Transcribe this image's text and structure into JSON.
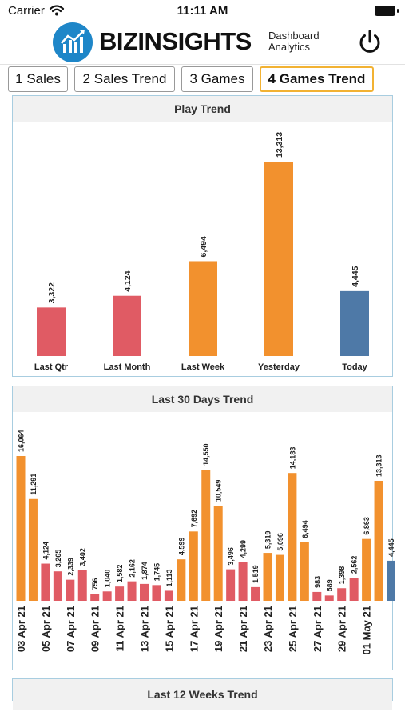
{
  "status": {
    "carrier": "Carrier",
    "time": "11:11 AM"
  },
  "header": {
    "brand": "BIZINSIGHTS",
    "subtitle_line1": "Dashboard",
    "subtitle_line2": "Analytics"
  },
  "tabs": [
    {
      "label": "1 Sales",
      "active": false
    },
    {
      "label": "2 Sales Trend",
      "active": false
    },
    {
      "label": "3 Games",
      "active": false
    },
    {
      "label": "4 Games Trend",
      "active": true
    }
  ],
  "colors": {
    "red": "#e05b64",
    "orange": "#f2912e",
    "blue": "#4e79a7",
    "brand": "#1e86c8"
  },
  "chart_data": [
    {
      "type": "bar",
      "title": "Play Trend",
      "categories": [
        "Last Qtr",
        "Last Month",
        "Last Week",
        "Yesterday",
        "Today"
      ],
      "values": [
        3322,
        4124,
        6494,
        13313,
        4445
      ],
      "value_labels": [
        "3,322",
        "4,124",
        "6,494",
        "13,313",
        "4,445"
      ],
      "colors": [
        "#e05b64",
        "#e05b64",
        "#f2912e",
        "#f2912e",
        "#4e79a7"
      ],
      "ylim": [
        0,
        13313
      ]
    },
    {
      "type": "bar",
      "title": "Last 30 Days Trend",
      "tick_labels": [
        "03 Apr 21",
        "05 Apr 21",
        "07 Apr 21",
        "09 Apr 21",
        "11 Apr 21",
        "13 Apr 21",
        "15 Apr 21",
        "17 Apr 21",
        "19 Apr 21",
        "21 Apr 21",
        "23 Apr 21",
        "25 Apr 21",
        "27 Apr 21",
        "29 Apr 21",
        "01 May 21"
      ],
      "values": [
        16064,
        11291,
        4124,
        3265,
        2339,
        3402,
        756,
        1040,
        1582,
        2162,
        1874,
        1745,
        1113,
        4599,
        7692,
        14550,
        10549,
        3496,
        4299,
        1519,
        5319,
        5096,
        14183,
        6494,
        983,
        589,
        1398,
        2562,
        6863,
        13313,
        4445
      ],
      "value_labels": [
        "16,064",
        "11,291",
        "4,124",
        "3,265",
        "2,339",
        "3,402",
        "756",
        "1,040",
        "1,582",
        "2,162",
        "1,874",
        "1,745",
        "1,113",
        "4,599",
        "7,692",
        "14,550",
        "10,549",
        "3,496",
        "4,299",
        "1,519",
        "5,319",
        "5,096",
        "14,183",
        "6,494",
        "983",
        "589",
        "1,398",
        "2,562",
        "6,863",
        "13,313",
        "4,445"
      ],
      "colors": [
        "#f2912e",
        "#f2912e",
        "#e05b64",
        "#e05b64",
        "#e05b64",
        "#e05b64",
        "#e05b64",
        "#e05b64",
        "#e05b64",
        "#e05b64",
        "#e05b64",
        "#e05b64",
        "#e05b64",
        "#f2912e",
        "#f2912e",
        "#f2912e",
        "#f2912e",
        "#e05b64",
        "#e05b64",
        "#e05b64",
        "#f2912e",
        "#f2912e",
        "#f2912e",
        "#f2912e",
        "#e05b64",
        "#e05b64",
        "#e05b64",
        "#e05b64",
        "#f2912e",
        "#f2912e",
        "#4e79a7"
      ],
      "ylim": [
        0,
        16064
      ]
    }
  ],
  "weeks_panel": {
    "title": "Last 12 Weeks Trend"
  }
}
